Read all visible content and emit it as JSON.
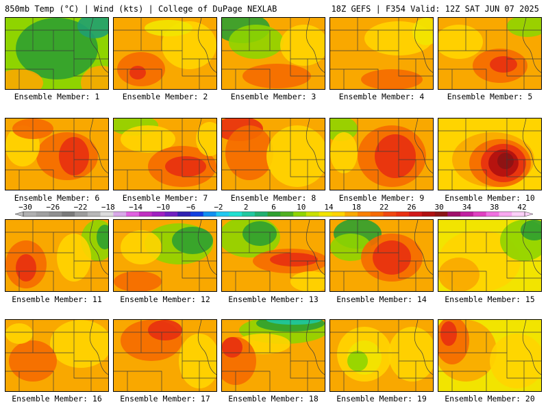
{
  "header": {
    "left": "850mb Temp (°C) | Wind (kts) | College of DuPage NEXLAB",
    "right": "18Z GEFS | F354 Valid: 12Z SAT JUN 07 2025"
  },
  "panels": [
    {
      "label": "Ensemble Member: 1",
      "base": "#8fd400",
      "blobs": [
        {
          "c": "#2fa030",
          "cx": 75,
          "cy": 45,
          "rx": 60,
          "ry": 45
        },
        {
          "c": "#20a070",
          "cx": 130,
          "cy": 12,
          "rx": 25,
          "ry": 18
        },
        {
          "c": "#f9a800",
          "cx": 20,
          "cy": 95,
          "rx": 35,
          "ry": 20
        },
        {
          "c": "#f9a800",
          "cx": 140,
          "cy": 95,
          "rx": 30,
          "ry": 25
        }
      ]
    },
    {
      "label": "Ensemble Member: 2",
      "base": "#f9a800",
      "blobs": [
        {
          "c": "#ffd400",
          "cx": 110,
          "cy": 40,
          "rx": 40,
          "ry": 35
        },
        {
          "c": "#f56a00",
          "cx": 40,
          "cy": 75,
          "rx": 35,
          "ry": 25
        },
        {
          "c": "#e83010",
          "cx": 35,
          "cy": 80,
          "rx": 12,
          "ry": 10
        },
        {
          "c": "#f2e400",
          "cx": 80,
          "cy": 15,
          "rx": 35,
          "ry": 12
        }
      ]
    },
    {
      "label": "Ensemble Member: 3",
      "base": "#f9a800",
      "blobs": [
        {
          "c": "#2fa030",
          "cx": 30,
          "cy": 15,
          "rx": 40,
          "ry": 22
        },
        {
          "c": "#8fd400",
          "cx": 50,
          "cy": 35,
          "rx": 40,
          "ry": 25
        },
        {
          "c": "#ffd400",
          "cx": 120,
          "cy": 40,
          "rx": 35,
          "ry": 30
        },
        {
          "c": "#f56a00",
          "cx": 80,
          "cy": 85,
          "rx": 50,
          "ry": 18
        }
      ]
    },
    {
      "label": "Ensemble Member: 4",
      "base": "#f9a800",
      "blobs": [
        {
          "c": "#ffd400",
          "cx": 100,
          "cy": 30,
          "rx": 50,
          "ry": 25
        },
        {
          "c": "#f2e400",
          "cx": 140,
          "cy": 20,
          "rx": 20,
          "ry": 20
        },
        {
          "c": "#f56a00",
          "cx": 90,
          "cy": 90,
          "rx": 45,
          "ry": 15
        }
      ]
    },
    {
      "label": "Ensemble Member: 5",
      "base": "#f9a800",
      "blobs": [
        {
          "c": "#8fd400",
          "cx": 130,
          "cy": 12,
          "rx": 30,
          "ry": 16
        },
        {
          "c": "#ffd400",
          "cx": 30,
          "cy": 35,
          "rx": 35,
          "ry": 25
        },
        {
          "c": "#f56a00",
          "cx": 90,
          "cy": 70,
          "rx": 40,
          "ry": 25
        },
        {
          "c": "#e83010",
          "cx": 95,
          "cy": 68,
          "rx": 20,
          "ry": 12
        }
      ]
    },
    {
      "label": "Ensemble Member: 6",
      "base": "#f9a800",
      "blobs": [
        {
          "c": "#f56a00",
          "cx": 90,
          "cy": 55,
          "rx": 45,
          "ry": 35
        },
        {
          "c": "#e83010",
          "cx": 100,
          "cy": 55,
          "rx": 22,
          "ry": 28
        },
        {
          "c": "#ffd400",
          "cx": 25,
          "cy": 40,
          "rx": 25,
          "ry": 30
        },
        {
          "c": "#f56a00",
          "cx": 40,
          "cy": 15,
          "rx": 30,
          "ry": 15
        }
      ]
    },
    {
      "label": "Ensemble Member: 7",
      "base": "#f9a800",
      "blobs": [
        {
          "c": "#8fd400",
          "cx": 30,
          "cy": 10,
          "rx": 35,
          "ry": 15
        },
        {
          "c": "#ffd400",
          "cx": 50,
          "cy": 30,
          "rx": 40,
          "ry": 20
        },
        {
          "c": "#f56a00",
          "cx": 100,
          "cy": 70,
          "rx": 50,
          "ry": 30
        },
        {
          "c": "#e83010",
          "cx": 105,
          "cy": 70,
          "rx": 30,
          "ry": 15
        },
        {
          "c": "#ffd400",
          "cx": 140,
          "cy": 30,
          "rx": 20,
          "ry": 25
        }
      ]
    },
    {
      "label": "Ensemble Member: 8",
      "base": "#f9a800",
      "blobs": [
        {
          "c": "#e83010",
          "cx": 25,
          "cy": 15,
          "rx": 35,
          "ry": 18
        },
        {
          "c": "#f56a00",
          "cx": 40,
          "cy": 50,
          "rx": 35,
          "ry": 40
        },
        {
          "c": "#ffd400",
          "cx": 110,
          "cy": 55,
          "rx": 45,
          "ry": 45
        }
      ]
    },
    {
      "label": "Ensemble Member: 9",
      "base": "#f9a800",
      "blobs": [
        {
          "c": "#8fd400",
          "cx": 15,
          "cy": 15,
          "rx": 25,
          "ry": 18
        },
        {
          "c": "#ffd400",
          "cx": 20,
          "cy": 50,
          "rx": 20,
          "ry": 30
        },
        {
          "c": "#f56a00",
          "cx": 90,
          "cy": 55,
          "rx": 50,
          "ry": 45
        },
        {
          "c": "#e83010",
          "cx": 95,
          "cy": 55,
          "rx": 30,
          "ry": 32
        }
      ]
    },
    {
      "label": "Ensemble Member: 10",
      "base": "#ffd400",
      "blobs": [
        {
          "c": "#f9a800",
          "cx": 80,
          "cy": 60,
          "rx": 60,
          "ry": 40
        },
        {
          "c": "#f56a00",
          "cx": 90,
          "cy": 65,
          "rx": 45,
          "ry": 35
        },
        {
          "c": "#e83010",
          "cx": 95,
          "cy": 65,
          "rx": 33,
          "ry": 28
        },
        {
          "c": "#b01010",
          "cx": 95,
          "cy": 65,
          "rx": 22,
          "ry": 20
        },
        {
          "c": "#8b1414",
          "cx": 98,
          "cy": 62,
          "rx": 12,
          "ry": 12
        }
      ]
    },
    {
      "label": "Ensemble Member: 11",
      "base": "#f9a800",
      "blobs": [
        {
          "c": "#8fd400",
          "cx": 135,
          "cy": 30,
          "rx": 25,
          "ry": 30
        },
        {
          "c": "#2fa030",
          "cx": 145,
          "cy": 25,
          "rx": 12,
          "ry": 18
        },
        {
          "c": "#f56a00",
          "cx": 30,
          "cy": 65,
          "rx": 30,
          "ry": 35
        },
        {
          "c": "#e83010",
          "cx": 30,
          "cy": 70,
          "rx": 15,
          "ry": 20
        },
        {
          "c": "#ffd400",
          "cx": 100,
          "cy": 55,
          "rx": 25,
          "ry": 35
        }
      ]
    },
    {
      "label": "Ensemble Member: 12",
      "base": "#f9a800",
      "blobs": [
        {
          "c": "#8fd400",
          "cx": 95,
          "cy": 35,
          "rx": 50,
          "ry": 30
        },
        {
          "c": "#2fa030",
          "cx": 115,
          "cy": 30,
          "rx": 30,
          "ry": 20
        },
        {
          "c": "#ffd400",
          "cx": 40,
          "cy": 40,
          "rx": 30,
          "ry": 25
        },
        {
          "c": "#f56a00",
          "cx": 35,
          "cy": 90,
          "rx": 35,
          "ry": 15
        }
      ]
    },
    {
      "label": "Ensemble Member: 13",
      "base": "#f9a800",
      "blobs": [
        {
          "c": "#8fd400",
          "cx": 40,
          "cy": 25,
          "rx": 45,
          "ry": 30
        },
        {
          "c": "#2fa030",
          "cx": 55,
          "cy": 20,
          "rx": 25,
          "ry": 18
        },
        {
          "c": "#f56a00",
          "cx": 100,
          "cy": 60,
          "rx": 55,
          "ry": 18
        },
        {
          "c": "#e83010",
          "cx": 105,
          "cy": 58,
          "rx": 35,
          "ry": 10
        },
        {
          "c": "#ffd400",
          "cx": 130,
          "cy": 90,
          "rx": 30,
          "ry": 15
        }
      ]
    },
    {
      "label": "Ensemble Member: 14",
      "base": "#f9a800",
      "blobs": [
        {
          "c": "#2fa030",
          "cx": 40,
          "cy": 20,
          "rx": 35,
          "ry": 22
        },
        {
          "c": "#8fd400",
          "cx": 30,
          "cy": 40,
          "rx": 30,
          "ry": 20
        },
        {
          "c": "#f56a00",
          "cx": 90,
          "cy": 55,
          "rx": 45,
          "ry": 35
        },
        {
          "c": "#e83010",
          "cx": 90,
          "cy": 55,
          "rx": 28,
          "ry": 25
        }
      ]
    },
    {
      "label": "Ensemble Member: 15",
      "base": "#f2e400",
      "blobs": [
        {
          "c": "#ffd400",
          "cx": 60,
          "cy": 60,
          "rx": 60,
          "ry": 45
        },
        {
          "c": "#8fd400",
          "cx": 125,
          "cy": 30,
          "rx": 35,
          "ry": 30
        },
        {
          "c": "#2fa030",
          "cx": 140,
          "cy": 15,
          "rx": 20,
          "ry": 15
        },
        {
          "c": "#f9a800",
          "cx": 30,
          "cy": 80,
          "rx": 30,
          "ry": 25
        }
      ]
    },
    {
      "label": "Ensemble Member: 16",
      "base": "#f9a800",
      "blobs": [
        {
          "c": "#ffd400",
          "cx": 110,
          "cy": 35,
          "rx": 45,
          "ry": 35
        },
        {
          "c": "#f56a00",
          "cx": 40,
          "cy": 60,
          "rx": 35,
          "ry": 30
        },
        {
          "c": "#ffd400",
          "cx": 20,
          "cy": 20,
          "rx": 20,
          "ry": 15
        }
      ]
    },
    {
      "label": "Ensemble Member: 17",
      "base": "#f9a800",
      "blobs": [
        {
          "c": "#f56a00",
          "cx": 55,
          "cy": 30,
          "rx": 45,
          "ry": 30
        },
        {
          "c": "#e83010",
          "cx": 75,
          "cy": 15,
          "rx": 25,
          "ry": 15
        },
        {
          "c": "#ffd400",
          "cx": 125,
          "cy": 60,
          "rx": 30,
          "ry": 40
        }
      ]
    },
    {
      "label": "Ensemble Member: 18",
      "base": "#f9a800",
      "blobs": [
        {
          "c": "#8fd400",
          "cx": 90,
          "cy": 15,
          "rx": 65,
          "ry": 20
        },
        {
          "c": "#2fa030",
          "cx": 100,
          "cy": 5,
          "rx": 50,
          "ry": 12
        },
        {
          "c": "#20c8a0",
          "cx": 105,
          "cy": 0,
          "rx": 40,
          "ry": 7
        },
        {
          "c": "#ffd400",
          "cx": 60,
          "cy": 35,
          "rx": 40,
          "ry": 15
        },
        {
          "c": "#f56a00",
          "cx": 20,
          "cy": 60,
          "rx": 30,
          "ry": 35
        },
        {
          "c": "#e83010",
          "cx": 15,
          "cy": 40,
          "rx": 15,
          "ry": 15
        }
      ]
    },
    {
      "label": "Ensemble Member: 19",
      "base": "#f9a800",
      "blobs": [
        {
          "c": "#ffd400",
          "cx": 50,
          "cy": 50,
          "rx": 40,
          "ry": 40
        },
        {
          "c": "#f2e400",
          "cx": 50,
          "cy": 55,
          "rx": 25,
          "ry": 25
        },
        {
          "c": "#8fd400",
          "cx": 40,
          "cy": 60,
          "rx": 15,
          "ry": 15
        },
        {
          "c": "#ffd400",
          "cx": 120,
          "cy": 50,
          "rx": 35,
          "ry": 40
        }
      ]
    },
    {
      "label": "Ensemble Member: 20",
      "base": "#f2e400",
      "blobs": [
        {
          "c": "#f9a800",
          "cx": 40,
          "cy": 45,
          "rx": 45,
          "ry": 45
        },
        {
          "c": "#f56a00",
          "cx": 20,
          "cy": 30,
          "rx": 25,
          "ry": 35
        },
        {
          "c": "#e83010",
          "cx": 15,
          "cy": 20,
          "rx": 12,
          "ry": 18
        },
        {
          "c": "#ffd400",
          "cx": 115,
          "cy": 60,
          "rx": 40,
          "ry": 40
        }
      ]
    }
  ],
  "colorbar": {
    "ticks": [
      "-30",
      "-26",
      "-22",
      "-18",
      "-14",
      "-10",
      "-6",
      "-2",
      "2",
      "6",
      "10",
      "14",
      "18",
      "22",
      "26",
      "30",
      "34",
      "38",
      "42"
    ],
    "colors": [
      "#b0b0b0",
      "#a0a0a0",
      "#909090",
      "#7a7a7a",
      "#9c9c9c",
      "#b8b8b8",
      "#dcdcdc",
      "#d8a8e8",
      "#e060e0",
      "#c030c0",
      "#a020c0",
      "#7020c0",
      "#3020b0",
      "#1040e0",
      "#1090f0",
      "#20c8f0",
      "#20e0d0",
      "#20c8a0",
      "#20b070",
      "#2fa030",
      "#50b020",
      "#8fd400",
      "#c8e000",
      "#f2e400",
      "#ffd400",
      "#f9a800",
      "#f98000",
      "#f56a00",
      "#f04810",
      "#e83010",
      "#d01818",
      "#b01010",
      "#8b1414",
      "#a0106a",
      "#c020a0",
      "#e040c0",
      "#f070e0",
      "#f8a8f0",
      "#fcd0f8"
    ]
  }
}
